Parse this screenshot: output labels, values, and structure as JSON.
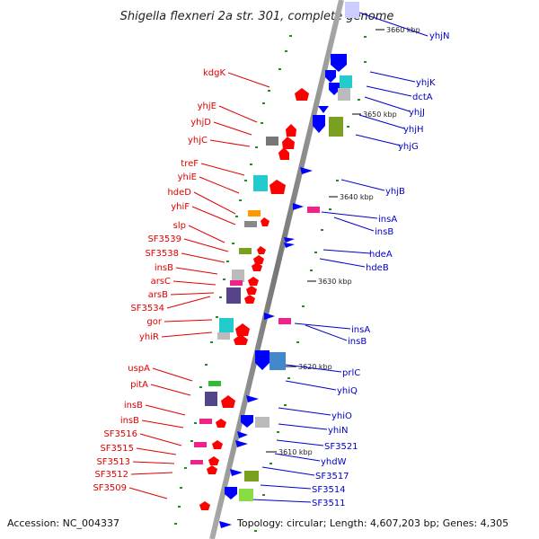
{
  "title": "Shigella flexneri 2a str. 301, complete genome",
  "footer": {
    "accession": "Accession: NC_004337",
    "topology": "Topology: circular; Length: 4,607,203 bp; Genes: 4,305"
  },
  "colors": {
    "forward": "#ff0000",
    "reverse": "#0000ff",
    "red_label": "#e00000",
    "blue_label": "#0000c8",
    "axis": "#808080",
    "tick": "#228b22"
  },
  "ticks": [
    {
      "label": "3660 kbp"
    },
    {
      "label": "3650 kbp"
    },
    {
      "label": "3640 kbp"
    },
    {
      "label": "3630 kbp"
    },
    {
      "label": "3620 kbp"
    },
    {
      "label": "3610 kbp"
    }
  ],
  "left_labels": [
    "kdgK",
    "yhjE",
    "yhjD",
    "yhjC",
    "treF",
    "yhiE",
    "hdeD",
    "yhiF",
    "slp",
    "SF3539",
    "SF3538",
    "insB",
    "arsC",
    "arsB",
    "SF3534",
    "gor",
    "yhiR",
    "uspA",
    "pitA",
    "insB",
    "insB",
    "SF3516",
    "SF3515",
    "SF3513",
    "SF3512",
    "SF3509"
  ],
  "right_labels": [
    "yhjN",
    "yhjK",
    "dctA",
    "yhjJ",
    "yhjH",
    "yhjG",
    "yhjB",
    "insA",
    "insB",
    "hdeA",
    "hdeB",
    "insA",
    "insB",
    "prlC",
    "yhiQ",
    "yhiO",
    "yhiN",
    "SF3521",
    "yhdW",
    "SF3517",
    "SF3514",
    "SF3511"
  ]
}
